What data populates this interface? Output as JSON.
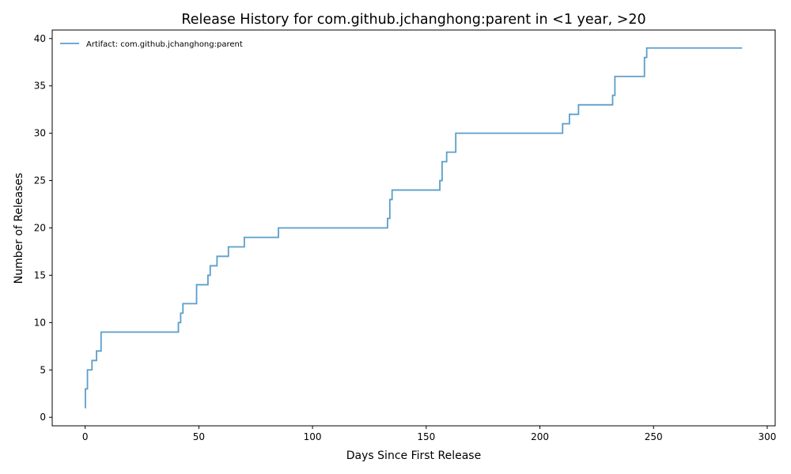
{
  "chart_data": {
    "type": "line",
    "step": "post",
    "title": "Release History for com.github.jchanghong:parent in <1 year, >20",
    "xlabel": "Days Since First Release",
    "ylabel": "Number of Releases",
    "xlim": [
      -14.5,
      303.5
    ],
    "ylim": [
      -0.9,
      40.9
    ],
    "xticks": [
      0,
      50,
      100,
      150,
      200,
      250,
      300
    ],
    "yticks": [
      0,
      5,
      10,
      15,
      20,
      25,
      30,
      35,
      40
    ],
    "grid": false,
    "legend": "top-left",
    "series": [
      {
        "name": "Artifact: com.github.jchanghong:parent",
        "color": "#5b9ec9",
        "points": [
          [
            0,
            1
          ],
          [
            0.1,
            3
          ],
          [
            1,
            5
          ],
          [
            3,
            6
          ],
          [
            5,
            7
          ],
          [
            7,
            9
          ],
          [
            41,
            10
          ],
          [
            42,
            11
          ],
          [
            43,
            12
          ],
          [
            49,
            14
          ],
          [
            54,
            15
          ],
          [
            55,
            16
          ],
          [
            58,
            17
          ],
          [
            63,
            18
          ],
          [
            70,
            19
          ],
          [
            85,
            20
          ],
          [
            133,
            21
          ],
          [
            134,
            23
          ],
          [
            135,
            24
          ],
          [
            156,
            25
          ],
          [
            157,
            27
          ],
          [
            159,
            28
          ],
          [
            163,
            30
          ],
          [
            210,
            31
          ],
          [
            213,
            32
          ],
          [
            217,
            33
          ],
          [
            232,
            34
          ],
          [
            233,
            36
          ],
          [
            246,
            38
          ],
          [
            247,
            39
          ],
          [
            289,
            39
          ]
        ]
      }
    ]
  }
}
